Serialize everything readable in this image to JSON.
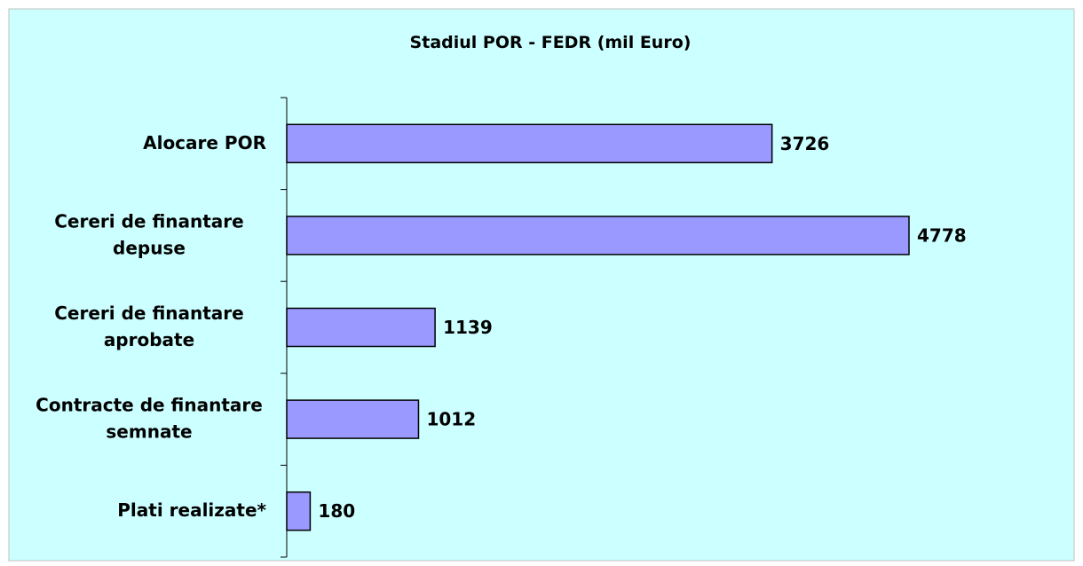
{
  "chart_data": {
    "type": "bar",
    "orientation": "horizontal",
    "title": "Stadiul POR - FEDR (mil Euro)",
    "categories": [
      "Alocare POR",
      "Cereri de finantare depuse",
      "Cereri de finantare aprobate",
      "Contracte de finantare semnate",
      "Plati realizate*"
    ],
    "values": [
      3726,
      4778,
      1139,
      1012,
      180
    ],
    "color": "#9999ff"
  }
}
